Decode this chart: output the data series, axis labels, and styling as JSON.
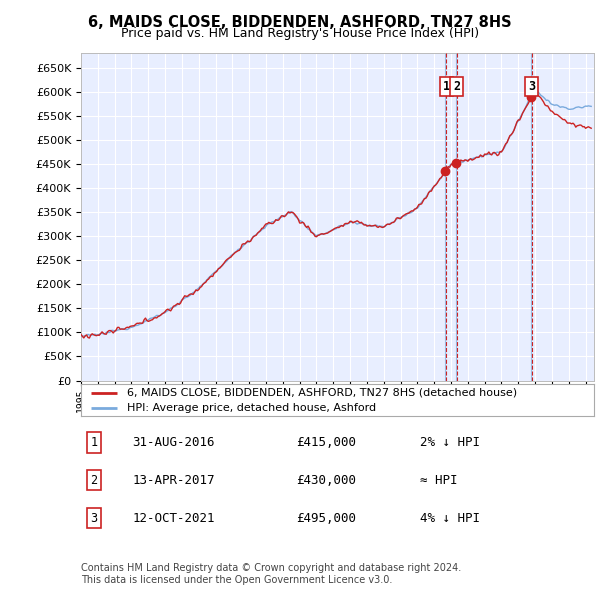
{
  "title": "6, MAIDS CLOSE, BIDDENDEN, ASHFORD, TN27 8HS",
  "subtitle": "Price paid vs. HM Land Registry's House Price Index (HPI)",
  "ylim": [
    0,
    680000
  ],
  "xlim_start": 1995,
  "xlim_end": 2025.5,
  "sale_dates": [
    "31-AUG-2016",
    "13-APR-2017",
    "12-OCT-2021"
  ],
  "sale_prices": [
    415000,
    430000,
    495000
  ],
  "sale_labels": [
    "1",
    "2",
    "3"
  ],
  "sale_notes": [
    "2% ↓ HPI",
    "≈ HPI",
    "4% ↓ HPI"
  ],
  "hpi_line_color": "#7aaadd",
  "price_line_color": "#cc2222",
  "marker_vline_color_solid": "#7aaadd",
  "marker_vline_color_dashed": "#cc2222",
  "legend_label_price": "6, MAIDS CLOSE, BIDDENDEN, ASHFORD, TN27 8HS (detached house)",
  "legend_label_hpi": "HPI: Average price, detached house, Ashford",
  "footer": "Contains HM Land Registry data © Crown copyright and database right 2024.\nThis data is licensed under the Open Government Licence v3.0.",
  "background_color": "#ffffff",
  "plot_bg_color": "#e8eeff",
  "grid_color": "#ffffff"
}
